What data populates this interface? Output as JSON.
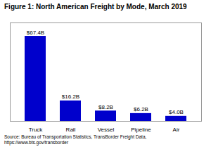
{
  "chart_data": {
    "type": "bar",
    "title": "Figure 1: North American Freight by Mode, March 2019",
    "categories": [
      "Truck",
      "Rail",
      "Vessel",
      "Pipeline",
      "Air"
    ],
    "values": [
      67.4,
      16.2,
      8.2,
      6.2,
      4.0
    ],
    "value_labels": [
      "$67.4B",
      "$16.2B",
      "$8.2B",
      "$6.2B",
      "$4.0B"
    ],
    "color": "#0000cc",
    "ylim": [
      0,
      78
    ],
    "data_labels": true,
    "tick_labels": "x",
    "annotations": [
      "Source: Bureau of Transportation Statistics, TransBorder Freight Data,\nhttps://www.bts.gov/transborder"
    ]
  }
}
